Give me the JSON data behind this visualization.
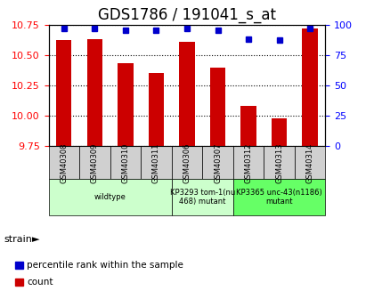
{
  "title": "GDS1786 / 191041_s_at",
  "samples": [
    "GSM40308",
    "GSM40309",
    "GSM40310",
    "GSM40311",
    "GSM40306",
    "GSM40307",
    "GSM40312",
    "GSM40313",
    "GSM40314"
  ],
  "counts": [
    10.62,
    10.63,
    10.43,
    10.35,
    10.61,
    10.4,
    10.08,
    9.98,
    10.72
  ],
  "percentiles": [
    97,
    97,
    95,
    95,
    97,
    95,
    88,
    87,
    97
  ],
  "ylim_left": [
    9.75,
    10.75
  ],
  "ylim_right": [
    0,
    100
  ],
  "yticks_left": [
    9.75,
    10.0,
    10.25,
    10.5,
    10.75
  ],
  "yticks_right": [
    0,
    25,
    50,
    75,
    100
  ],
  "bar_color": "#cc0000",
  "dot_color": "#0000cc",
  "groups": [
    {
      "label": "wildtype",
      "start": 0,
      "end": 4,
      "color": "#ccffcc"
    },
    {
      "label": "KP3293 tom-1(nu\n468) mutant",
      "start": 4,
      "end": 6,
      "color": "#ccffcc"
    },
    {
      "label": "KP3365 unc-43(n1186)\nmutant",
      "start": 6,
      "end": 9,
      "color": "#66ff66"
    }
  ],
  "strain_label": "strain",
  "legend_items": [
    {
      "label": "count",
      "color": "#cc0000"
    },
    {
      "label": "percentile rank within the sample",
      "color": "#0000cc"
    }
  ],
  "title_fontsize": 12,
  "tick_fontsize": 8,
  "bar_width": 0.5,
  "sample_box_color": "#d0d0d0"
}
